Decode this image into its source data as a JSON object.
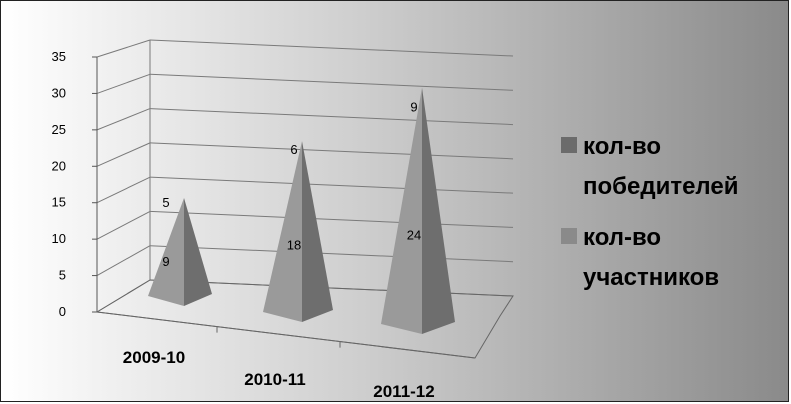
{
  "chart_data": {
    "type": "bar",
    "style": "3d-pyramid-stacked",
    "categories": [
      "2009-10",
      "2010-11",
      "2011-12"
    ],
    "series": [
      {
        "name": "кол-во участников",
        "values": [
          9,
          18,
          24
        ]
      },
      {
        "name": "кол-во победителей",
        "values": [
          5,
          6,
          9
        ]
      }
    ],
    "ylim": [
      0,
      35
    ],
    "yticks": [
      "0",
      "5",
      "10",
      "15",
      "20",
      "25",
      "30",
      "35"
    ],
    "grid": true,
    "legend_position": "right",
    "legend": [
      {
        "lines": [
          "кол-во",
          "победителей"
        ],
        "color": "#6b6b6b"
      },
      {
        "lines": [
          "кол-во",
          "участников"
        ],
        "color": "#8a8a8a"
      }
    ],
    "colors": {
      "pyramid_light": "#9a9a9a",
      "pyramid_dark": "#6e6e6e"
    }
  }
}
